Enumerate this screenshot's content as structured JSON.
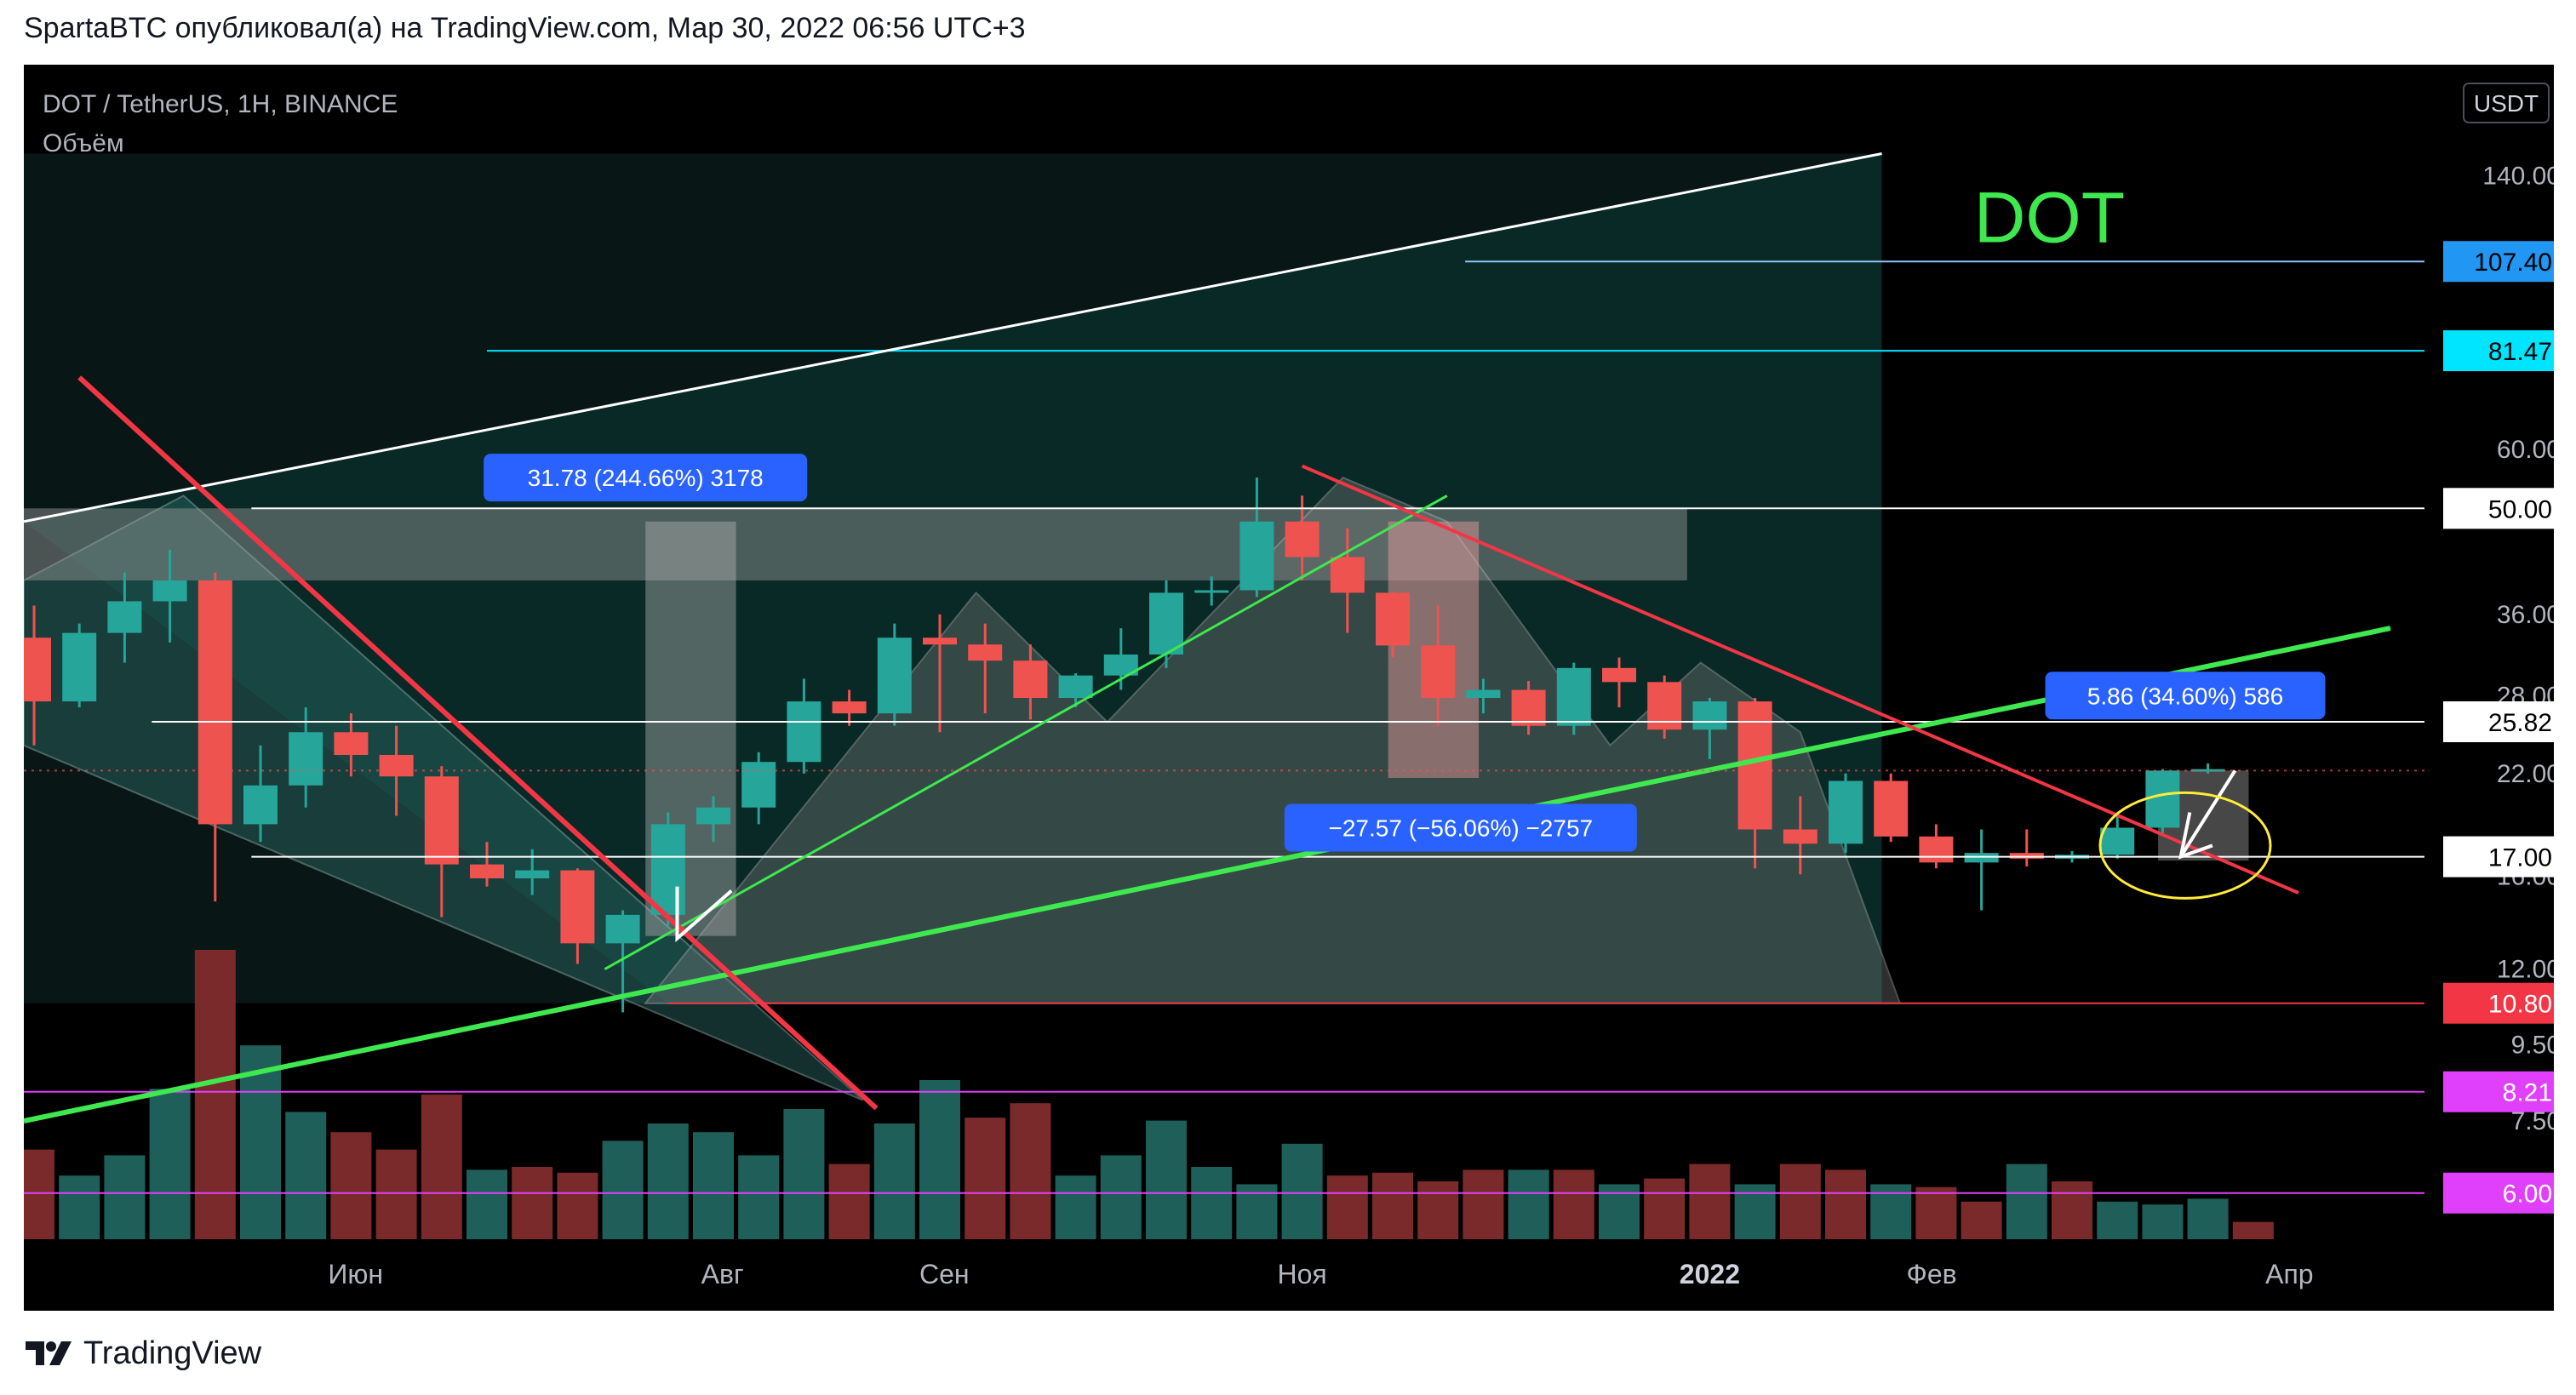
{
  "header": {
    "text": "SpartaBTC опубликовал(а) на TradingView.com, Мар 30, 2022 06:56 UTC+3"
  },
  "symbol_title": "DOT / TetherUS, 1H, BINANCE",
  "volume_label": "Объём",
  "currency_button": "USDT",
  "annotation_text": "DOT",
  "footer": {
    "brand": "TradingView",
    "logo_icon": "tradingview-logo-icon"
  },
  "colors": {
    "up": "#26a69a",
    "down": "#ef5350",
    "green_line": "#3ee84e",
    "red_line": "#f23645",
    "magenta": "#e040fb",
    "blue_label": "#2962ff"
  },
  "chart_data": {
    "type": "candlestick",
    "scale": "log",
    "ylim": [
      5.2,
      160
    ],
    "price_ticks": [
      "140.00",
      "60.00",
      "36.00",
      "28.00",
      "22.00",
      "16.00",
      "12.00",
      "9.50",
      "7.50"
    ],
    "x_labels": [
      {
        "label": "Июн",
        "index": 7.1
      },
      {
        "label": "Авг",
        "index": 15.2
      },
      {
        "label": "Сен",
        "index": 20.1
      },
      {
        "label": "Ноя",
        "index": 28.0
      },
      {
        "label": "2022",
        "index": 37.0,
        "bold": true
      },
      {
        "label": "Фев",
        "index": 41.9
      },
      {
        "label": "Апр",
        "index": 49.8
      }
    ],
    "candles": [
      {
        "o": 33.5,
        "h": 37,
        "c": 27.5,
        "l": 24
      },
      {
        "o": 27.5,
        "h": 35,
        "c": 34,
        "l": 27
      },
      {
        "o": 34,
        "h": 41,
        "c": 37.5,
        "l": 31
      },
      {
        "o": 37.5,
        "h": 44,
        "c": 40,
        "l": 33
      },
      {
        "o": 40,
        "h": 41,
        "c": 18.8,
        "l": 14.8
      },
      {
        "o": 18.8,
        "h": 24,
        "c": 21.2,
        "l": 17.8
      },
      {
        "o": 21.2,
        "h": 27,
        "c": 25,
        "l": 19.8
      },
      {
        "o": 25,
        "h": 26.5,
        "c": 23.3,
        "l": 21.8
      },
      {
        "o": 23.3,
        "h": 25.5,
        "c": 21.8,
        "l": 19.3
      },
      {
        "o": 21.8,
        "h": 22.5,
        "c": 16.6,
        "l": 14.1
      },
      {
        "o": 16.6,
        "h": 17.8,
        "c": 15.9,
        "l": 15.5
      },
      {
        "o": 15.9,
        "h": 17.4,
        "c": 16.3,
        "l": 15.1
      },
      {
        "o": 16.3,
        "h": 16.4,
        "c": 13,
        "l": 12.2
      },
      {
        "o": 13,
        "h": 14.4,
        "c": 14.2,
        "l": 10.5
      },
      {
        "o": 14.2,
        "h": 19.5,
        "c": 18.8,
        "l": 13.7
      },
      {
        "o": 18.8,
        "h": 20.5,
        "c": 19.8,
        "l": 17.8
      },
      {
        "o": 19.8,
        "h": 23.5,
        "c": 22.8,
        "l": 18.8
      },
      {
        "o": 22.8,
        "h": 29.5,
        "c": 27.5,
        "l": 22
      },
      {
        "o": 27.5,
        "h": 28.5,
        "c": 26.5,
        "l": 25.5
      },
      {
        "o": 26.5,
        "h": 35,
        "c": 33.5,
        "l": 25.5
      },
      {
        "o": 33.5,
        "h": 36,
        "c": 32.8,
        "l": 25
      },
      {
        "o": 32.8,
        "h": 35,
        "c": 31.2,
        "l": 26.5
      },
      {
        "o": 31.2,
        "h": 32.8,
        "c": 27.8,
        "l": 26
      },
      {
        "o": 27.8,
        "h": 30,
        "c": 29.8,
        "l": 27
      },
      {
        "o": 29.8,
        "h": 34.5,
        "c": 31.8,
        "l": 28.5
      },
      {
        "o": 31.8,
        "h": 40,
        "c": 38.5,
        "l": 30.5
      },
      {
        "o": 38.5,
        "h": 40.5,
        "c": 38.8,
        "l": 37
      },
      {
        "o": 38.8,
        "h": 55,
        "c": 48,
        "l": 38
      },
      {
        "o": 48,
        "h": 52,
        "c": 43,
        "l": 40
      },
      {
        "o": 43,
        "h": 47,
        "c": 38.5,
        "l": 34
      },
      {
        "o": 38.5,
        "h": 38.6,
        "c": 32.7,
        "l": 31.5
      },
      {
        "o": 32.7,
        "h": 37,
        "c": 27.8,
        "l": 25.5
      },
      {
        "o": 27.8,
        "h": 29.5,
        "c": 28.5,
        "l": 26.5
      },
      {
        "o": 28.5,
        "h": 29.3,
        "c": 25.5,
        "l": 24.8
      },
      {
        "o": 25.5,
        "h": 31,
        "c": 30.5,
        "l": 24.8
      },
      {
        "o": 30.5,
        "h": 31.5,
        "c": 29.2,
        "l": 27
      },
      {
        "o": 29.2,
        "h": 29.8,
        "c": 25.2,
        "l": 24.5
      },
      {
        "o": 25.2,
        "h": 27.8,
        "c": 27.5,
        "l": 23
      },
      {
        "o": 27.5,
        "h": 27.8,
        "c": 18.5,
        "l": 16.4
      },
      {
        "o": 18.5,
        "h": 20.5,
        "c": 17.7,
        "l": 16.1
      },
      {
        "o": 17.7,
        "h": 22,
        "c": 21.5,
        "l": 17.2
      },
      {
        "o": 21.5,
        "h": 22,
        "c": 18.1,
        "l": 17.8
      },
      {
        "o": 18.1,
        "h": 18.8,
        "c": 16.7,
        "l": 16.4
      },
      {
        "o": 16.7,
        "h": 18.5,
        "c": 17.2,
        "l": 14.4
      },
      {
        "o": 17.2,
        "h": 18.5,
        "c": 16.9,
        "l": 16.5
      },
      {
        "o": 16.9,
        "h": 17.3,
        "c": 17.1,
        "l": 16.7
      },
      {
        "o": 17.1,
        "h": 19.5,
        "c": 18.6,
        "l": 16.9
      },
      {
        "o": 18.6,
        "h": 22.3,
        "c": 22.2,
        "l": 18.2
      },
      {
        "o": 22.2,
        "h": 22.7,
        "c": 22.3,
        "l": 22.0
      }
    ],
    "volumes": [
      {
        "v": 0.31,
        "up": false
      },
      {
        "v": 0.22,
        "up": true
      },
      {
        "v": 0.29,
        "up": true
      },
      {
        "v": 0.52,
        "up": true
      },
      {
        "v": 1.0,
        "up": false
      },
      {
        "v": 0.67,
        "up": true
      },
      {
        "v": 0.44,
        "up": true
      },
      {
        "v": 0.37,
        "up": false
      },
      {
        "v": 0.31,
        "up": false
      },
      {
        "v": 0.5,
        "up": false
      },
      {
        "v": 0.24,
        "up": true
      },
      {
        "v": 0.25,
        "up": false
      },
      {
        "v": 0.23,
        "up": false
      },
      {
        "v": 0.34,
        "up": true
      },
      {
        "v": 0.4,
        "up": true
      },
      {
        "v": 0.37,
        "up": true
      },
      {
        "v": 0.29,
        "up": true
      },
      {
        "v": 0.45,
        "up": true
      },
      {
        "v": 0.26,
        "up": false
      },
      {
        "v": 0.4,
        "up": true
      },
      {
        "v": 0.55,
        "up": true
      },
      {
        "v": 0.42,
        "up": false
      },
      {
        "v": 0.47,
        "up": false
      },
      {
        "v": 0.22,
        "up": true
      },
      {
        "v": 0.29,
        "up": true
      },
      {
        "v": 0.41,
        "up": true
      },
      {
        "v": 0.25,
        "up": true
      },
      {
        "v": 0.19,
        "up": true
      },
      {
        "v": 0.33,
        "up": true
      },
      {
        "v": 0.22,
        "up": false
      },
      {
        "v": 0.23,
        "up": false
      },
      {
        "v": 0.2,
        "up": false
      },
      {
        "v": 0.24,
        "up": false
      },
      {
        "v": 0.24,
        "up": true
      },
      {
        "v": 0.24,
        "up": false
      },
      {
        "v": 0.19,
        "up": true
      },
      {
        "v": 0.21,
        "up": false
      },
      {
        "v": 0.26,
        "up": false
      },
      {
        "v": 0.19,
        "up": true
      },
      {
        "v": 0.26,
        "up": false
      },
      {
        "v": 0.24,
        "up": false
      },
      {
        "v": 0.19,
        "up": true
      },
      {
        "v": 0.18,
        "up": false
      },
      {
        "v": 0.13,
        "up": false
      },
      {
        "v": 0.26,
        "up": true
      },
      {
        "v": 0.2,
        "up": false
      },
      {
        "v": 0.13,
        "up": true
      },
      {
        "v": 0.12,
        "up": true
      },
      {
        "v": 0.14,
        "up": true
      },
      {
        "v": 0.06,
        "up": false
      }
    ],
    "price_labels": [
      {
        "text": "107.40",
        "bg": "#2196f3",
        "fg": "#000000",
        "bar": "#8fc4f9",
        "value": 107.4
      },
      {
        "text": "81.47",
        "bg": "#00e5ff",
        "fg": "#000000",
        "bar": "#00e5ff",
        "value": 81.47
      },
      {
        "text": "50.00",
        "bg": "#ffffff",
        "fg": "#000000",
        "bar": "#ffffff",
        "value": 50.0
      },
      {
        "text": "25.82",
        "bg": "#ffffff",
        "fg": "#000000",
        "bar": "#ffffff",
        "value": 25.82
      },
      {
        "text": "17.00",
        "bg": "#ffffff",
        "fg": "#000000",
        "bar": "#ffffff",
        "value": 17.0
      },
      {
        "text": "10.80",
        "bg": "#f23645",
        "fg": "#ffffff",
        "bar": "#f23645",
        "value": 10.8
      },
      {
        "text": "8.21",
        "bg": "#e040fb",
        "fg": "#ffffff",
        "bar": "#e040fb",
        "value": 8.21
      },
      {
        "text": "6.00",
        "bg": "#e040fb",
        "fg": "#ffffff",
        "bar": "#e040fb",
        "value": 6.0
      }
    ],
    "measure_labels": [
      {
        "text": "31.78 (244.66%) 3178",
        "index": 13.5,
        "value": 55
      },
      {
        "text": "−27.57 (−56.06%) −2757",
        "index": 31.5,
        "value": 18.6
      },
      {
        "text": "5.86 (34.60%) 586",
        "index": 47.5,
        "value": 28
      }
    ]
  }
}
